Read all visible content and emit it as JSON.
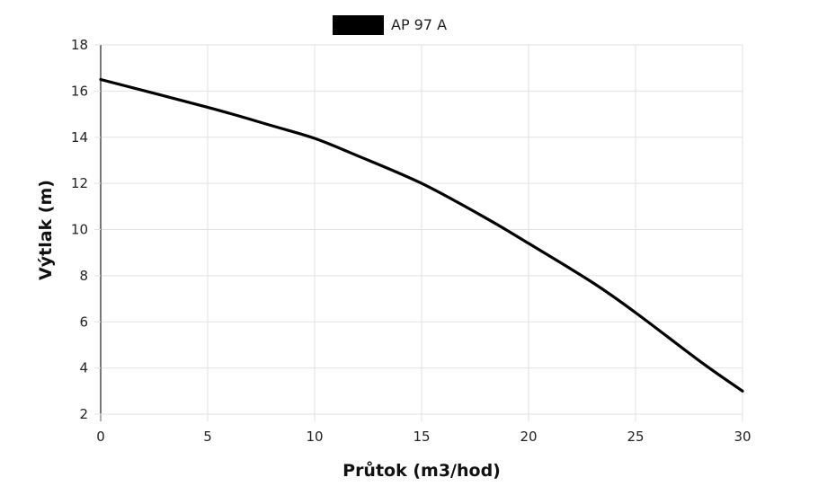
{
  "chart_data": {
    "type": "line",
    "xlabel": "Průtok (m3/hod)",
    "ylabel": "Výtlak (m)",
    "xlim": [
      0,
      30
    ],
    "ylim": [
      2,
      18
    ],
    "x_ticks": [
      0,
      5,
      10,
      15,
      20,
      25,
      30
    ],
    "y_ticks": [
      2,
      4,
      6,
      8,
      10,
      12,
      14,
      16,
      18
    ],
    "grid": true,
    "legend_position": "top-center",
    "series": [
      {
        "name": "AP 97 A",
        "color": "#000000",
        "x": [
          0,
          5,
          8,
          10,
          12,
          15,
          18,
          20,
          23,
          25,
          28,
          30
        ],
        "y": [
          16.5,
          15.3,
          14.5,
          13.95,
          13.2,
          12.0,
          10.5,
          9.4,
          7.7,
          6.4,
          4.3,
          3.0
        ]
      }
    ]
  }
}
